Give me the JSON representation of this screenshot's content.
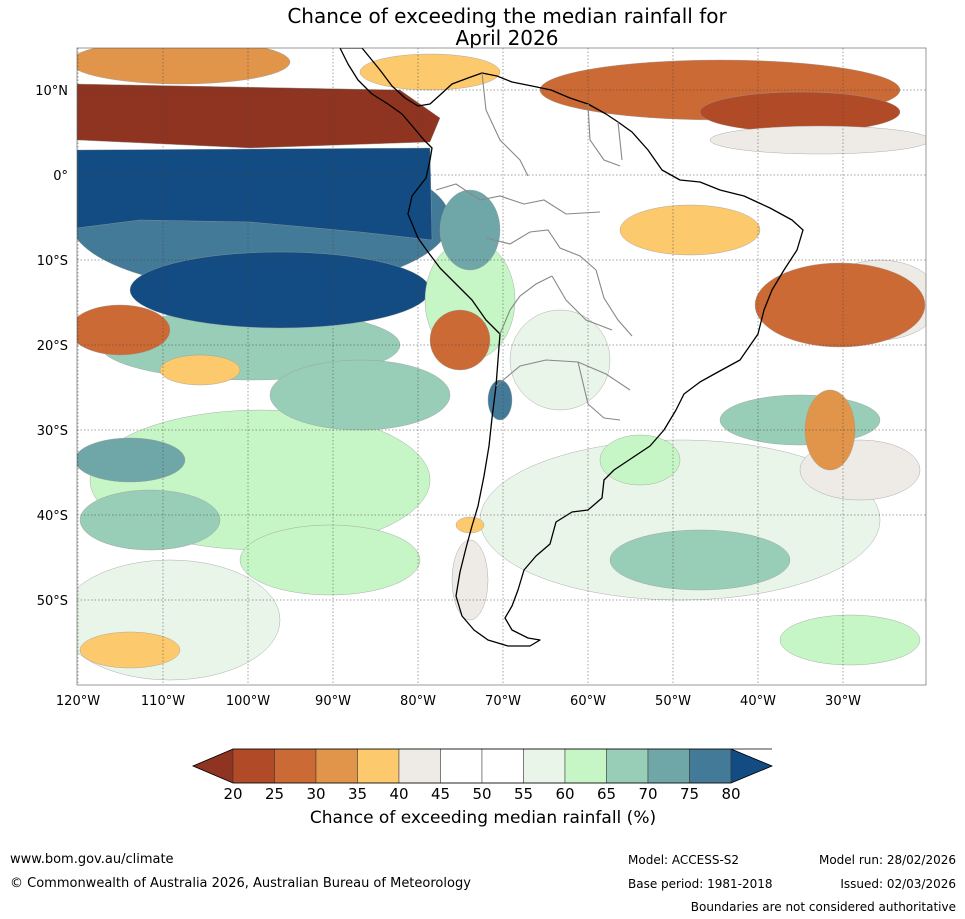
{
  "title": {
    "line1": "Chance of exceeding the median rainfall for",
    "line2": "April 2026"
  },
  "map": {
    "lat_labels": [
      "10°N",
      "0°",
      "10°S",
      "20°S",
      "30°S",
      "40°S",
      "50°S"
    ],
    "lon_labels": [
      "120°W",
      "110°W",
      "100°W",
      "90°W",
      "80°W",
      "70°W",
      "60°W",
      "50°W",
      "40°W",
      "30°W"
    ],
    "colors": {
      "c20": "#8e3421",
      "c25": "#b14a26",
      "c30": "#cb6a34",
      "c35": "#e0954a",
      "c40": "#fcc96c",
      "c45": "#eeebe6",
      "c50": "#ffffff",
      "c55": "#ffffff",
      "c60": "#e9f5e9",
      "c65": "#c6f5c6",
      "c70": "#98cdb7",
      "c75": "#6fa7a8",
      "c80": "#427a98",
      "c85": "#124c82",
      "land_outline": "#000000",
      "borders": "#888888"
    }
  },
  "colorbar": {
    "ticks": [
      "20",
      "25",
      "30",
      "35",
      "40",
      "45",
      "50",
      "55",
      "60",
      "65",
      "70",
      "75",
      "80"
    ],
    "label": "Chance of exceeding median rainfall (%)",
    "colors": [
      "#8e3421",
      "#b14a26",
      "#cb6a34",
      "#e0954a",
      "#fcc96c",
      "#eeebe6",
      "#ffffff",
      "#ffffff",
      "#e9f5e9",
      "#c6f5c6",
      "#98cdb7",
      "#6fa7a8",
      "#427a98",
      "#124c82"
    ]
  },
  "footer": {
    "website": "www.bom.gov.au/climate",
    "copyright": "© Commonwealth of Australia 2026, Australian Bureau of Meteorology",
    "model": "Model: ACCESS-S2",
    "base_period": "Base period: 1981-2018",
    "model_run": "Model run: 28/02/2026",
    "issued": "Issued: 02/03/2026",
    "disclaimer": "Boundaries are not considered authoritative"
  }
}
